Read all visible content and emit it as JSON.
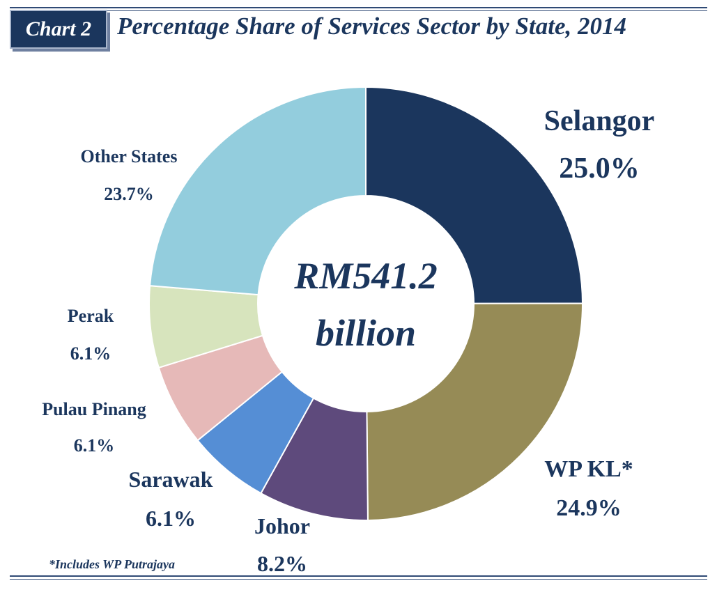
{
  "badge": "Chart 2",
  "chart_data": {
    "type": "pie",
    "title": "Percentage Share of Services Sector by State, 2014",
    "center_label": [
      "RM541.2",
      "billion"
    ],
    "unit": "%",
    "slices": [
      {
        "name": "Selangor",
        "label": "25.0%",
        "value": 25.0,
        "color": "#1b365d"
      },
      {
        "name": "WP KL*",
        "label": "24.9%",
        "value": 24.9,
        "color": "#968b56"
      },
      {
        "name": "Johor",
        "label": "8.2%",
        "value": 8.2,
        "color": "#5e4a7c"
      },
      {
        "name": "Sarawak",
        "label": "6.1%",
        "value": 6.1,
        "color": "#558ed5"
      },
      {
        "name": "Pulau Pinang",
        "label": "6.1%",
        "value": 6.1,
        "color": "#e6b9b8"
      },
      {
        "name": "Perak",
        "label": "6.1%",
        "value": 6.1,
        "color": "#d7e4bd"
      },
      {
        "name": "Other States",
        "label": "23.7%",
        "value": 23.7,
        "color": "#93cddd"
      }
    ]
  },
  "footnote": "*Includes WP Putrajaya"
}
